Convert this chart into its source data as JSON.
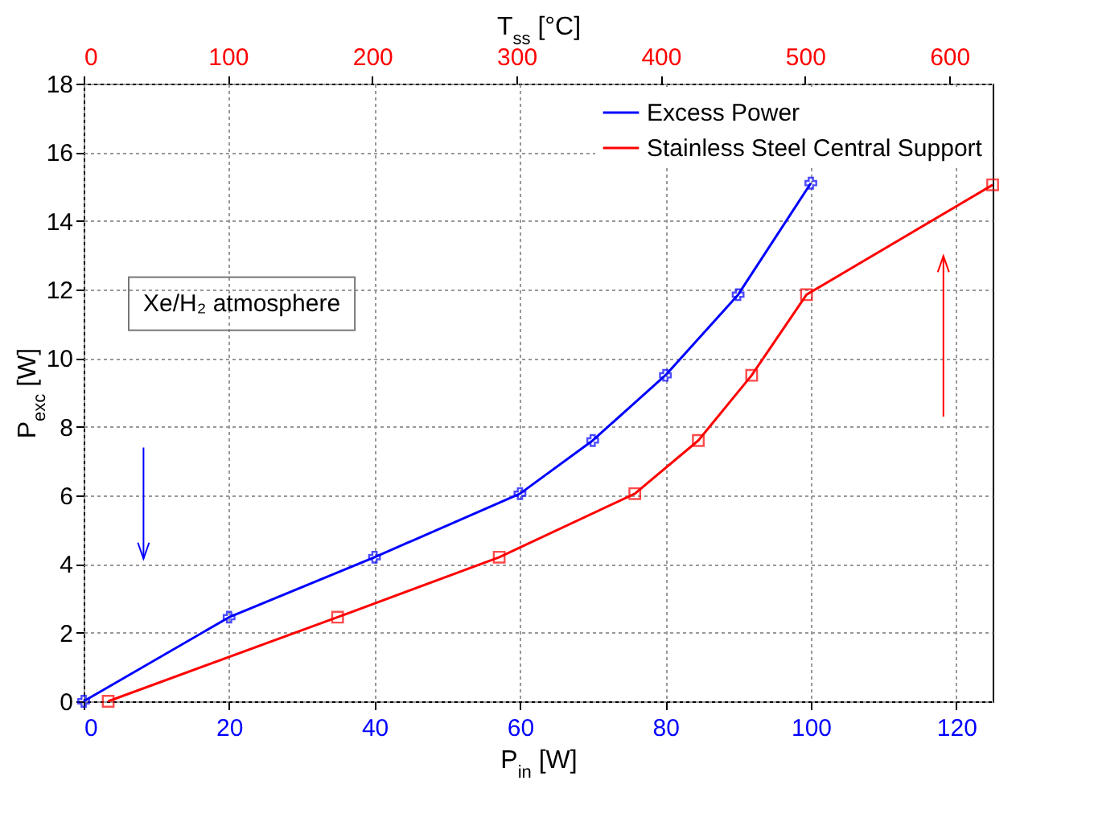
{
  "chart_data": {
    "type": "line",
    "xlabel": "P$_{in}$ [W]",
    "ylabel": "P$_{exc}$ [W]",
    "x2label": "T$_{ss}$ [°C]",
    "xlim": [
      0,
      125
    ],
    "xticks": [
      0,
      20,
      40,
      60,
      80,
      100,
      120
    ],
    "x2lim": [
      0,
      630
    ],
    "x2ticks": [
      0,
      100,
      200,
      300,
      400,
      500,
      600
    ],
    "ylim": [
      0,
      18
    ],
    "yticks": [
      0,
      2,
      4,
      6,
      8,
      10,
      12,
      14,
      16,
      18
    ],
    "grid": true,
    "legend": "top right",
    "annotations": [
      "Xe/H₂ atmosphere"
    ],
    "series": [
      {
        "name": "Excess Power",
        "color": "#0000ff",
        "marker": "cross",
        "x": [
          0,
          20,
          40,
          60,
          70,
          80,
          90,
          100
        ],
        "values": [
          0,
          2.45,
          4.2,
          6.05,
          7.6,
          9.5,
          11.85,
          15.1
        ]
      },
      {
        "name": "Stainless Steel Central Support",
        "color": "#ff0000",
        "marker": "square",
        "axis": "x2",
        "x": [
          17,
          176,
          288,
          382,
          426,
          463,
          501,
          630
        ],
        "values": [
          0,
          2.45,
          4.2,
          6.05,
          7.6,
          9.5,
          11.85,
          15.05
        ]
      }
    ]
  }
}
